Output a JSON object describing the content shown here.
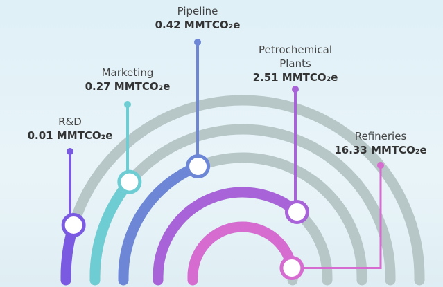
{
  "items": [
    {
      "name": "R&D",
      "value": "0.01 MMTCO₂e"
    },
    {
      "name": "Marketing",
      "value": "0.27 MMTCO₂e"
    },
    {
      "name": "Pipeline",
      "value": "0.42 MMTCO₂e"
    },
    {
      "name": "Petrochemical Plants",
      "value": "2.51 MMTCO₂e"
    },
    {
      "name": "Refineries",
      "value": "16.33 MMTCO₂e"
    }
  ]
}
